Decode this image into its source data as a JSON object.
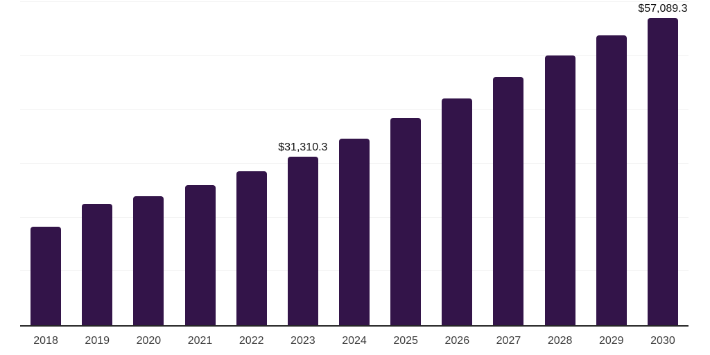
{
  "chart_data": {
    "type": "bar",
    "title": "",
    "xlabel": "",
    "ylabel": "",
    "categories": [
      "2018",
      "2019",
      "2020",
      "2021",
      "2022",
      "2023",
      "2024",
      "2025",
      "2026",
      "2027",
      "2028",
      "2029",
      "2030"
    ],
    "values": [
      18300,
      22500,
      24000,
      26000,
      28600,
      31310.3,
      34700,
      38500,
      42100,
      46100,
      50100,
      53800,
      57089.3
    ],
    "data_labels": [
      "",
      "",
      "",
      "",
      "",
      "$31,310.3",
      "",
      "",
      "",
      "",
      "",
      "",
      "$57,089.3"
    ],
    "ylim": [
      0,
      60000
    ],
    "gridline_step": 10000,
    "grid": true,
    "legend": "none",
    "colors": {
      "bar": "#331449",
      "axis": "#262626",
      "gridline": "#f1f1f1",
      "tick_label": "#3c3c3c",
      "data_label": "#0f0f0f",
      "background": "#ffffff"
    }
  }
}
